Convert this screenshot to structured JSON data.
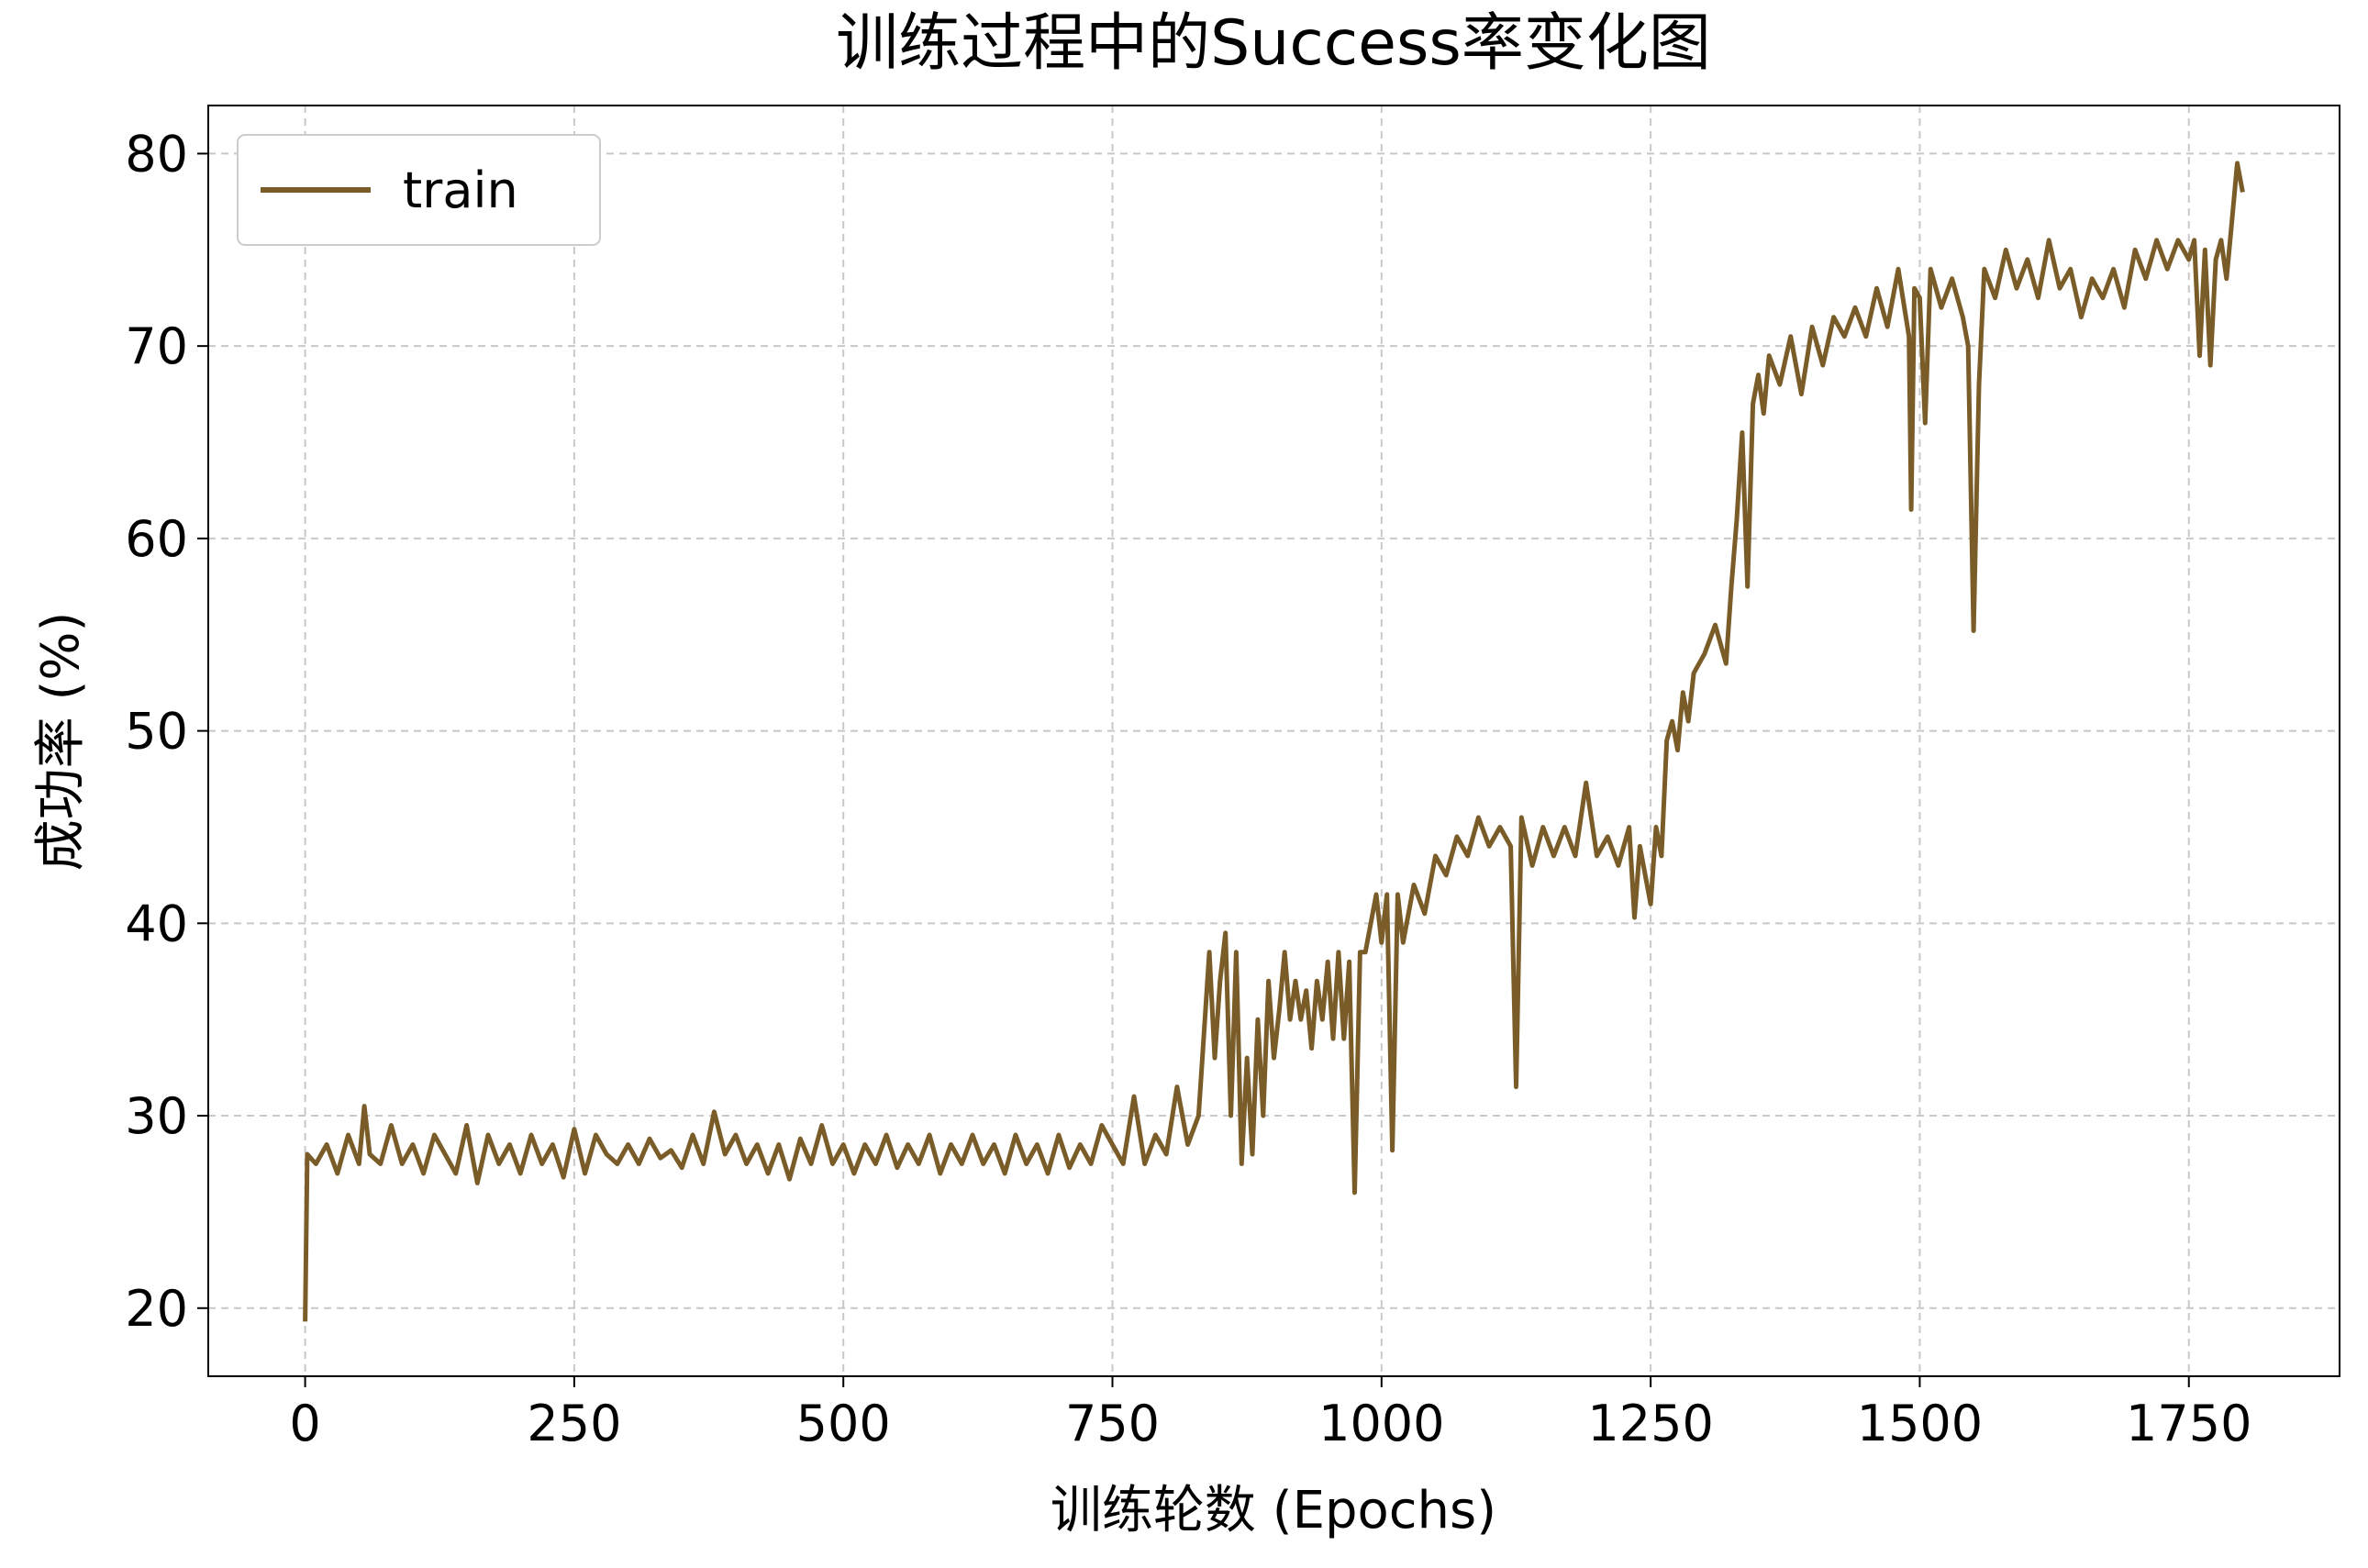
{
  "chart_data": {
    "type": "line",
    "title": "训练过程中的Success率变化图",
    "x_label": "训练轮数 (Epochs)",
    "y_label": "成功率 (%)",
    "x": [
      0,
      2,
      10,
      20,
      30,
      40,
      50,
      55,
      60,
      70,
      80,
      90,
      100,
      110,
      120,
      130,
      140,
      150,
      160,
      170,
      180,
      190,
      200,
      210,
      220,
      230,
      240,
      250,
      260,
      270,
      280,
      290,
      300,
      310,
      320,
      330,
      340,
      350,
      360,
      370,
      380,
      390,
      400,
      410,
      420,
      430,
      440,
      450,
      460,
      470,
      480,
      490,
      500,
      510,
      520,
      530,
      540,
      550,
      560,
      570,
      580,
      590,
      600,
      610,
      620,
      630,
      640,
      650,
      660,
      670,
      680,
      690,
      700,
      710,
      720,
      730,
      740,
      750,
      760,
      770,
      780,
      790,
      800,
      810,
      820,
      830,
      840,
      845,
      850,
      855,
      860,
      865,
      870,
      875,
      880,
      885,
      890,
      895,
      900,
      905,
      910,
      915,
      920,
      925,
      930,
      935,
      940,
      945,
      950,
      955,
      960,
      965,
      970,
      975,
      980,
      985,
      990,
      995,
      1000,
      1005,
      1010,
      1015,
      1020,
      1030,
      1040,
      1050,
      1060,
      1070,
      1080,
      1090,
      1100,
      1110,
      1120,
      1125,
      1130,
      1140,
      1150,
      1160,
      1170,
      1180,
      1190,
      1200,
      1210,
      1220,
      1230,
      1235,
      1240,
      1250,
      1255,
      1260,
      1265,
      1270,
      1275,
      1280,
      1285,
      1290,
      1300,
      1310,
      1320,
      1325,
      1330,
      1335,
      1340,
      1345,
      1350,
      1355,
      1360,
      1370,
      1380,
      1390,
      1400,
      1410,
      1420,
      1430,
      1440,
      1450,
      1460,
      1470,
      1480,
      1490,
      1492,
      1495,
      1500,
      1505,
      1510,
      1520,
      1530,
      1540,
      1545,
      1550,
      1555,
      1560,
      1570,
      1580,
      1590,
      1600,
      1610,
      1620,
      1630,
      1640,
      1650,
      1660,
      1670,
      1680,
      1690,
      1700,
      1710,
      1720,
      1730,
      1740,
      1750,
      1755,
      1760,
      1765,
      1770,
      1775,
      1780,
      1785,
      1790,
      1795,
      1800
    ],
    "series": [
      {
        "name": "train",
        "color": "#7a5c28",
        "values": [
          19.3,
          28,
          27.5,
          28.5,
          27,
          29,
          27.5,
          30.5,
          28,
          27.5,
          29.5,
          27.5,
          28.5,
          27,
          29,
          28,
          27,
          29.5,
          26.5,
          29,
          27.5,
          28.5,
          27,
          29,
          27.5,
          28.5,
          26.8,
          29.3,
          27,
          29,
          28,
          27.5,
          28.5,
          27.5,
          28.8,
          27.8,
          28.2,
          27.3,
          29,
          27.5,
          30.2,
          28,
          29,
          27.5,
          28.5,
          27,
          28.5,
          26.7,
          28.8,
          27.5,
          29.5,
          27.5,
          28.5,
          27,
          28.5,
          27.5,
          29,
          27.3,
          28.5,
          27.5,
          29,
          27,
          28.5,
          27.5,
          29,
          27.5,
          28.5,
          27,
          29,
          27.5,
          28.5,
          27,
          29,
          27.3,
          28.5,
          27.5,
          29.5,
          28.5,
          27.5,
          31,
          27.5,
          29,
          28,
          31.5,
          28.5,
          30,
          38.5,
          33,
          37,
          39.5,
          30,
          38.5,
          27.5,
          33,
          28,
          35,
          30,
          37,
          33,
          35.5,
          38.5,
          35,
          37,
          35,
          36.5,
          33.5,
          37,
          35,
          38,
          34,
          38.5,
          34,
          38,
          26,
          38.5,
          38.5,
          40,
          41.5,
          39,
          41.5,
          28.2,
          41.5,
          39,
          42,
          40.5,
          43.5,
          42.5,
          44.5,
          43.5,
          45.5,
          44,
          45,
          44,
          31.5,
          45.5,
          43,
          45,
          43.5,
          45,
          43.5,
          47.3,
          43.5,
          44.5,
          43,
          45,
          40.3,
          44,
          41,
          45,
          43.5,
          49.5,
          50.5,
          49,
          52,
          50.5,
          53,
          54,
          55.5,
          53.5,
          57.5,
          61,
          65.5,
          57.5,
          67,
          68.5,
          66.5,
          69.5,
          68,
          70.5,
          67.5,
          71,
          69,
          71.5,
          70.5,
          72,
          70.5,
          73,
          71,
          74,
          70.5,
          61.5,
          73,
          72.5,
          66,
          74,
          72,
          73.5,
          71.5,
          70,
          55.2,
          68,
          74,
          72.5,
          75,
          73,
          74.5,
          72.5,
          75.5,
          73,
          74,
          71.5,
          73.5,
          72.5,
          74,
          72,
          75,
          73.5,
          75.5,
          74,
          75.5,
          74.5,
          75.5,
          69.5,
          75,
          69,
          74.5,
          75.5,
          73.5,
          76.5,
          79.5,
          78
        ]
      }
    ],
    "xlim": [
      -90,
      1890
    ],
    "ylim": [
      16.46,
      82.5
    ],
    "xticks": [
      0,
      250,
      500,
      750,
      1000,
      1250,
      1500,
      1750
    ],
    "yticks": [
      20,
      30,
      40,
      50,
      60,
      70,
      80
    ],
    "grid": true,
    "legend": "upper left"
  }
}
